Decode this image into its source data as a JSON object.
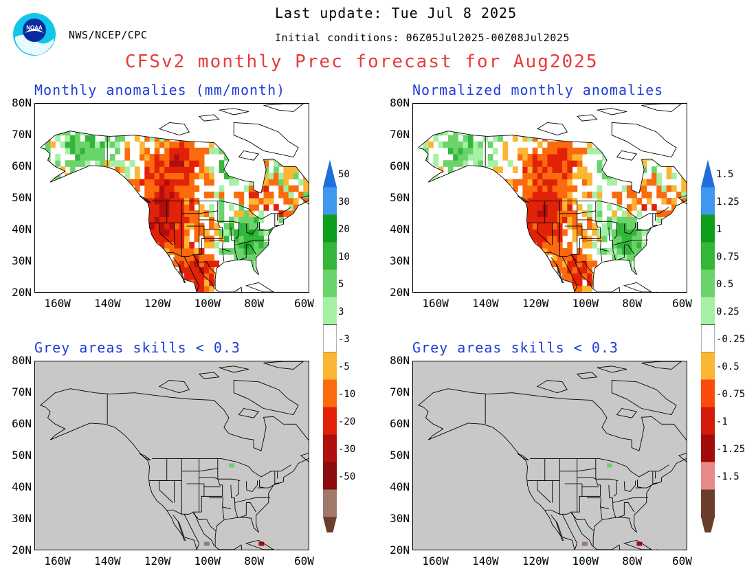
{
  "header": {
    "agency": "NWS/NCEP/CPC",
    "last_update": "Last update: Tue Jul  8 2025",
    "initial_conditions": "Initial conditions: 06Z05Jul2025-00Z08Jul2025",
    "title": "CFSv2 monthly Prec forecast for Aug2025",
    "logo_text": "NOAA"
  },
  "panels": [
    {
      "id": "anom",
      "title": "Monthly anomalies (mm/month)"
    },
    {
      "id": "norm",
      "title": "Normalized monthly anomalies"
    },
    {
      "id": "skill1",
      "title": "Grey areas skills < 0.3"
    },
    {
      "id": "skill2",
      "title": "Grey areas skills < 0.3"
    }
  ],
  "axes": {
    "lat_labels": [
      "80N",
      "70N",
      "60N",
      "50N",
      "40N",
      "30N",
      "20N"
    ],
    "lon_labels": [
      "160W",
      "140W",
      "120W",
      "100W",
      "80W",
      "60W"
    ],
    "lat_range": [
      20,
      80
    ],
    "lon_range": [
      -170,
      -60
    ]
  },
  "colorbars": {
    "anom_labels": [
      "50",
      "30",
      "20",
      "10",
      "5",
      "3",
      "-3",
      "-5",
      "-10",
      "-20",
      "-30",
      "-50"
    ],
    "norm_labels": [
      "1.5",
      "1.25",
      "1",
      "0.75",
      "0.5",
      "0.25",
      "-0.25",
      "-0.5",
      "-0.75",
      "-1",
      "-1.25",
      "-1.5"
    ],
    "colors": [
      "#1e6fd9",
      "#3f98ee",
      "#0e9e1e",
      "#34b63a",
      "#6ad46a",
      "#a6f0a6",
      "#ffffff",
      "#fbb634",
      "#fb6a0c",
      "#e12208",
      "#b10e0e",
      "#8a0c0c",
      "#a0796a",
      "#6b3e2c"
    ],
    "norm_colors": [
      "#1e6fd9",
      "#3f98ee",
      "#0e9e1e",
      "#34b63a",
      "#6ad46a",
      "#a6f0a6",
      "#ffffff",
      "#fbb634",
      "#fb4a0c",
      "#d41a0a",
      "#a00c0c",
      "#e88a8a",
      "#6b3e2c"
    ]
  },
  "colors": {
    "title": "#e83b3b",
    "panel_title": "#1e3cd6",
    "skill_grey": "#c8c8c8"
  }
}
